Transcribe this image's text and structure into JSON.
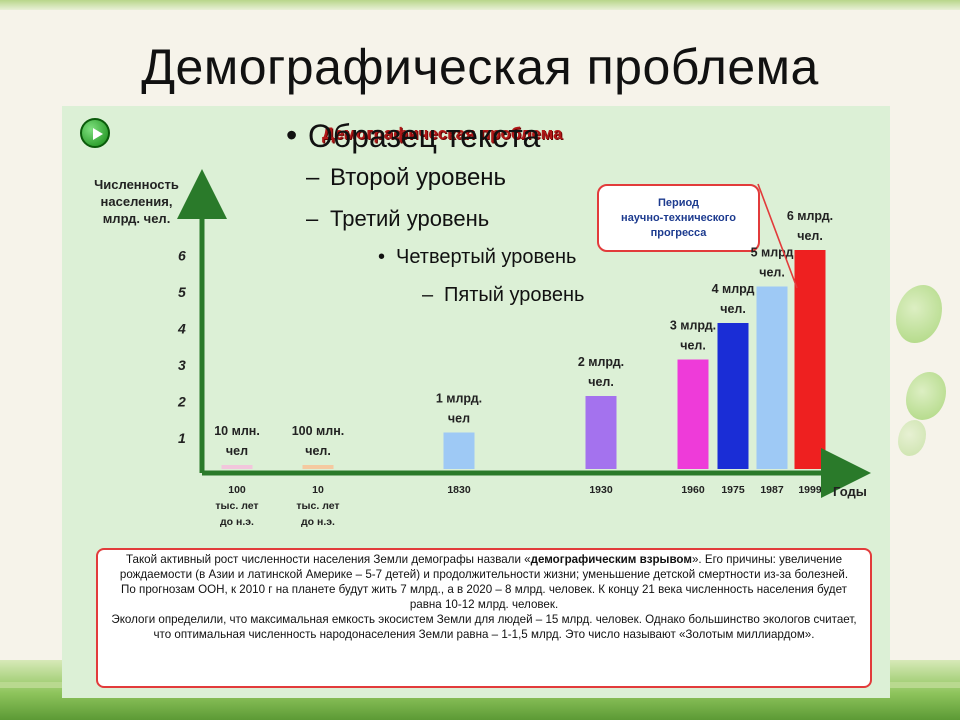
{
  "slide": {
    "title": "Демографическая проблема"
  },
  "placeholder": {
    "level1": "Образец текста",
    "level2": "Второй уровень",
    "level3": "Третий уровень",
    "level4": "Четвертый уровень",
    "level5": "Пятый уровень"
  },
  "play_icon": "play-button-icon",
  "colors": {
    "title": "#b01818",
    "axis": "#2a7a2a",
    "border": "#e23b3b",
    "panel": "#dcf0d6"
  },
  "period_box": {
    "text": "Период\nнаучно-технического\nпрогресса"
  },
  "notes": {
    "p1_before": "Такой активный рост численности населения Земли демографы назвали «",
    "p1_bold": "демографическим взрывом",
    "p1_after": "». Его причины: увеличение рождаемости (в Азии и латинской Америке – 5-7 детей) и продолжительности жизни; уменьшение детской смертности из-за болезней.",
    "p2": "По прогнозам ООН,  к 2010 г на планете будут жить 7 млрд., а в 2020 – 8 млрд. человек. К концу 21 века численность населения будет равна 10-12 млрд. человек.",
    "p3": "Экологи определили, что максимальная емкость экосистем Земли для людей – 15 млрд. человек.  Однако большинство экологов считает, что оптимальная численность народонаселения Земли равна – 1-1,5 млрд. Это число называют «Золотым миллиардом»."
  },
  "chart_data": {
    "type": "bar",
    "title": "Демографическая проблема",
    "ylabel": "Численность\nнаселения,\nмлрд. чел.",
    "xlabel": "Годы",
    "yticks": [
      "1",
      "2",
      "3",
      "4",
      "5",
      "6"
    ],
    "ylim": [
      0,
      7
    ],
    "categories": [
      "100\nтыс. лет\nдо н.э.",
      "10\nтыс. лет\nдо н.э.",
      "1830",
      "1930",
      "1960",
      "1975",
      "1987",
      "1999"
    ],
    "values": [
      0.01,
      0.1,
      1,
      2,
      3,
      4,
      5,
      6
    ],
    "labels": [
      "10 млн.\nчел",
      "100 млн.\nчел.",
      "1 млрд.\nчел",
      "2 млрд.\nчел.",
      "3 млрд.\nчел.",
      "4 млрд\nчел.",
      "5 млрд\nчел.",
      "6 млрд.\nчел."
    ],
    "bar_colors": [
      "#f2c6dc",
      "#f5c9a0",
      "#9ec9f5",
      "#a472ee",
      "#ee3bd9",
      "#1a2dd6",
      "#9ec9f5",
      "#ee2020"
    ],
    "grid": false
  }
}
